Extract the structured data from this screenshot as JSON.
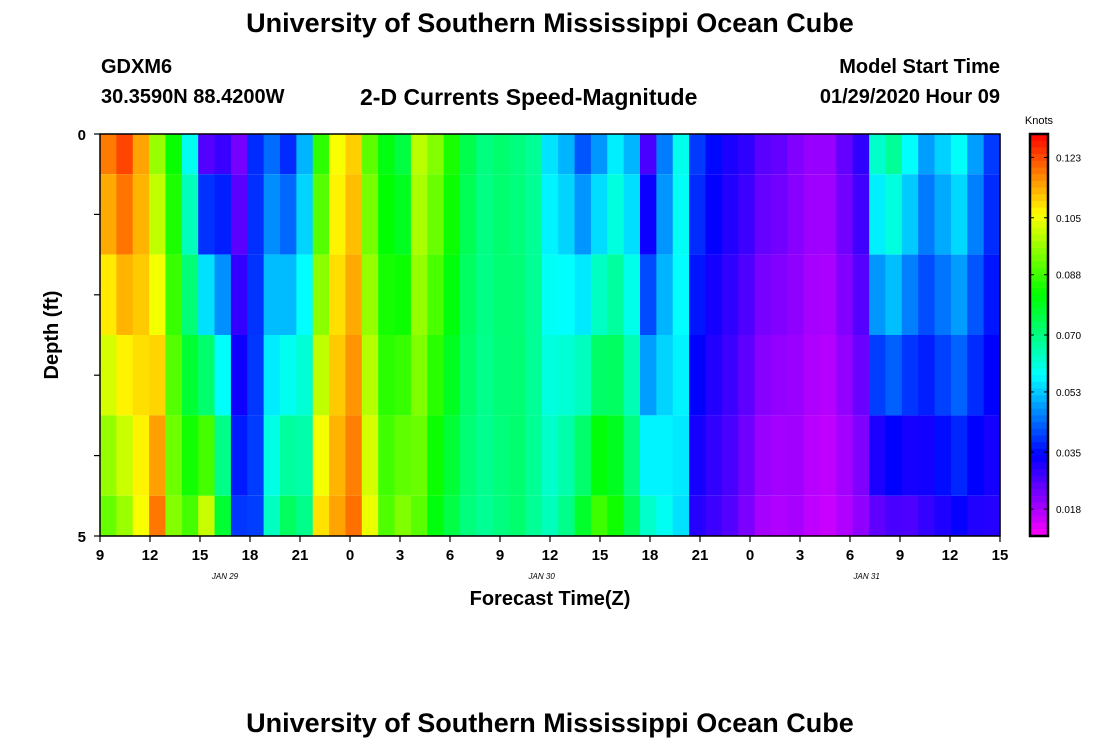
{
  "header": {
    "title": "University of Southern Mississippi Ocean Cube",
    "station_id": "GDXM6",
    "station_coords": "30.3590N 88.4200W",
    "subtitle": "2-D Currents Speed-Magnitude",
    "start_label": "Model Start Time",
    "start_value": "01/29/2020 Hour 09"
  },
  "footer": {
    "title": "University of Southern Mississippi Ocean Cube"
  },
  "chart_data": {
    "type": "heatmap",
    "title": "2-D Currents Speed-Magnitude",
    "xlabel": "Forecast Time(Z)",
    "ylabel": "Depth (ft)",
    "colorbar_label": "Knots",
    "x_start_hour": 9,
    "x_hours": 54,
    "x_tick_labels": [
      "9",
      "12",
      "15",
      "18",
      "21",
      "0",
      "3",
      "6",
      "9",
      "12",
      "15",
      "18",
      "21",
      "0",
      "3",
      "6",
      "9",
      "12",
      "15"
    ],
    "x_date_labels": [
      {
        "label": "JAN 29",
        "hour": 7.5
      },
      {
        "label": "JAN 30",
        "hour": 26.5
      },
      {
        "label": "JAN 31",
        "hour": 46
      }
    ],
    "y_tick_labels": [
      "0",
      "5"
    ],
    "ylim": [
      0,
      5
    ],
    "clim": [
      0.01,
      0.13
    ],
    "colorbar_ticks": [
      "0.123",
      "0.105",
      "0.088",
      "0.070",
      "0.053",
      "0.035",
      "0.018"
    ],
    "colorbar_tick_values": [
      0.123,
      0.105,
      0.088,
      0.07,
      0.053,
      0.035,
      0.018
    ],
    "depth_bands": [
      {
        "from": 0.0,
        "to": 0.5
      },
      {
        "from": 0.5,
        "to": 1.5
      },
      {
        "from": 1.5,
        "to": 2.5
      },
      {
        "from": 2.5,
        "to": 3.5
      },
      {
        "from": 3.5,
        "to": 4.5
      },
      {
        "from": 4.5,
        "to": 5.0
      }
    ],
    "surface_speeds": [
      0.12,
      0.125,
      0.115,
      0.095,
      0.082,
      0.058,
      0.022,
      0.026,
      0.022,
      0.038,
      0.043,
      0.036,
      0.05,
      0.085,
      0.105,
      0.11,
      0.09,
      0.08,
      0.075,
      0.1,
      0.095,
      0.085,
      0.075,
      0.07,
      0.072,
      0.07,
      0.068,
      0.055,
      0.05,
      0.04,
      0.046,
      0.055,
      0.05,
      0.025,
      0.045,
      0.06,
      0.04,
      0.035,
      0.032,
      0.03,
      0.026,
      0.025,
      0.022,
      0.02,
      0.02,
      0.025,
      0.03,
      0.065,
      0.07,
      0.06,
      0.05,
      0.055,
      0.06,
      0.05,
      0.04
    ],
    "bottom_speeds": [
      0.09,
      0.095,
      0.105,
      0.12,
      0.095,
      0.09,
      0.105,
      0.08,
      0.04,
      0.04,
      0.065,
      0.075,
      0.07,
      0.11,
      0.115,
      0.12,
      0.105,
      0.09,
      0.095,
      0.09,
      0.08,
      0.075,
      0.07,
      0.068,
      0.07,
      0.072,
      0.068,
      0.065,
      0.07,
      0.08,
      0.09,
      0.085,
      0.075,
      0.065,
      0.06,
      0.055,
      0.03,
      0.028,
      0.026,
      0.022,
      0.018,
      0.017,
      0.018,
      0.016,
      0.015,
      0.017,
      0.02,
      0.023,
      0.025,
      0.025,
      0.028,
      0.03,
      0.032,
      0.03,
      0.03
    ],
    "plot_background": "#ffffff",
    "frame_color": "#000000"
  }
}
